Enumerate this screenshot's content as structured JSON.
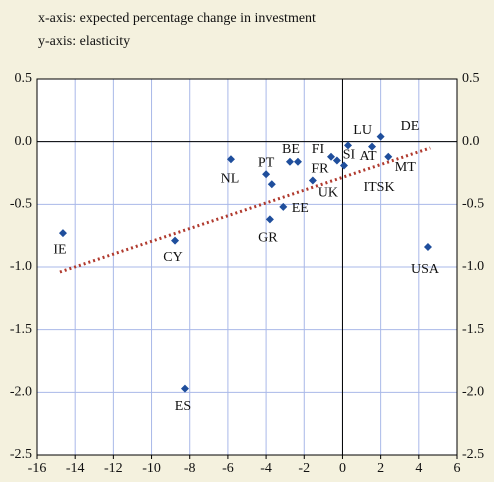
{
  "chart_data": {
    "type": "scatter",
    "notes": [
      "x-axis: expected percentage change in investment",
      "y-axis: elasticity"
    ],
    "xlim": [
      -16,
      6
    ],
    "xticks": [
      -16,
      -14,
      -12,
      -10,
      -8,
      -6,
      -4,
      -2,
      0,
      2,
      4,
      6
    ],
    "ylim": [
      -2.5,
      0.5
    ],
    "yticks": [
      {
        "value": 0.5,
        "label": "0.5"
      },
      {
        "value": 0,
        "label": "0.0"
      },
      {
        "value": -0.5,
        "label": "-0.5"
      },
      {
        "value": -1,
        "label": "-1.0"
      },
      {
        "value": -1.5,
        "label": "-1.5"
      },
      {
        "value": -2,
        "label": "-2.0"
      },
      {
        "value": -2.5,
        "label": "-2.5"
      }
    ],
    "grid": true,
    "color": "#1f4e9c",
    "x": [
      -14.64,
      -8.77,
      -8.25,
      -5.84,
      -4.0,
      -3.7,
      -3.8,
      -3.1,
      -2.75,
      -2.33,
      -1.55,
      -0.6,
      -0.29,
      0.29,
      0.08,
      1.55,
      2.0,
      2.4,
      4.48
    ],
    "values": [
      -0.73,
      -0.79,
      -1.97,
      -0.14,
      -0.26,
      -0.34,
      -0.62,
      -0.52,
      -0.16,
      -0.16,
      -0.31,
      -0.12,
      -0.15,
      -0.03,
      -0.19,
      -0.04,
      0.04,
      -0.12,
      -0.84
    ],
    "labels": [
      "IE",
      "CY",
      "ES",
      "NL",
      "PT",
      null,
      "GR",
      "EE",
      "BE",
      null,
      "UK",
      "FI",
      "FR",
      null,
      "SI",
      "AT",
      "LU",
      "MT",
      "USA"
    ],
    "annotations": [
      "DE",
      "ITSK"
    ],
    "trendline": {
      "x": [
        -14.8,
        4.6
      ],
      "y": [
        -1.04,
        -0.05
      ],
      "color": "#b03a2e"
    }
  }
}
